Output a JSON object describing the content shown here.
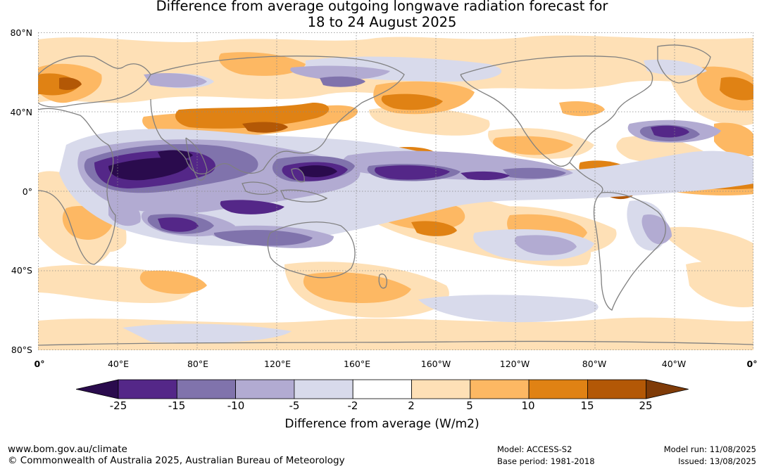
{
  "title": {
    "line1": "Difference from average outgoing longwave radiation forecast for",
    "line2": "18 to 24 August 2025"
  },
  "map": {
    "lat_labels": [
      "80°N",
      "40°N",
      "0°",
      "40°S",
      "80°S"
    ],
    "lon_labels": [
      "0°",
      "40°E",
      "80°E",
      "120°E",
      "160°E",
      "160°W",
      "120°W",
      "80°W",
      "40°W",
      "0°"
    ],
    "colors": {
      "ocean_neutral": "#ffffff",
      "coast": "#808080",
      "grid": "#888888"
    }
  },
  "colorbar": {
    "ticks": [
      "-25",
      "-15",
      "-10",
      "-5",
      "-2",
      "2",
      "5",
      "10",
      "15",
      "25"
    ],
    "colors": [
      "#2a0b4d",
      "#542788",
      "#8073ac",
      "#b2abd2",
      "#d8daeb",
      "#ffffff",
      "#fee0b6",
      "#fdb863",
      "#e08214",
      "#b35806",
      "#7f3b08"
    ],
    "label": "Difference from average (W/m2)"
  },
  "footer": {
    "url": "www.bom.gov.au/climate",
    "copyright": "© Commonwealth of Australia 2025, Australian Bureau of Meteorology",
    "model": "Model: ACCESS-S2",
    "base_period": "Base period: 1981-2018",
    "model_run": "Model run: 11/08/2025",
    "issued": "Issued: 13/08/2025"
  }
}
